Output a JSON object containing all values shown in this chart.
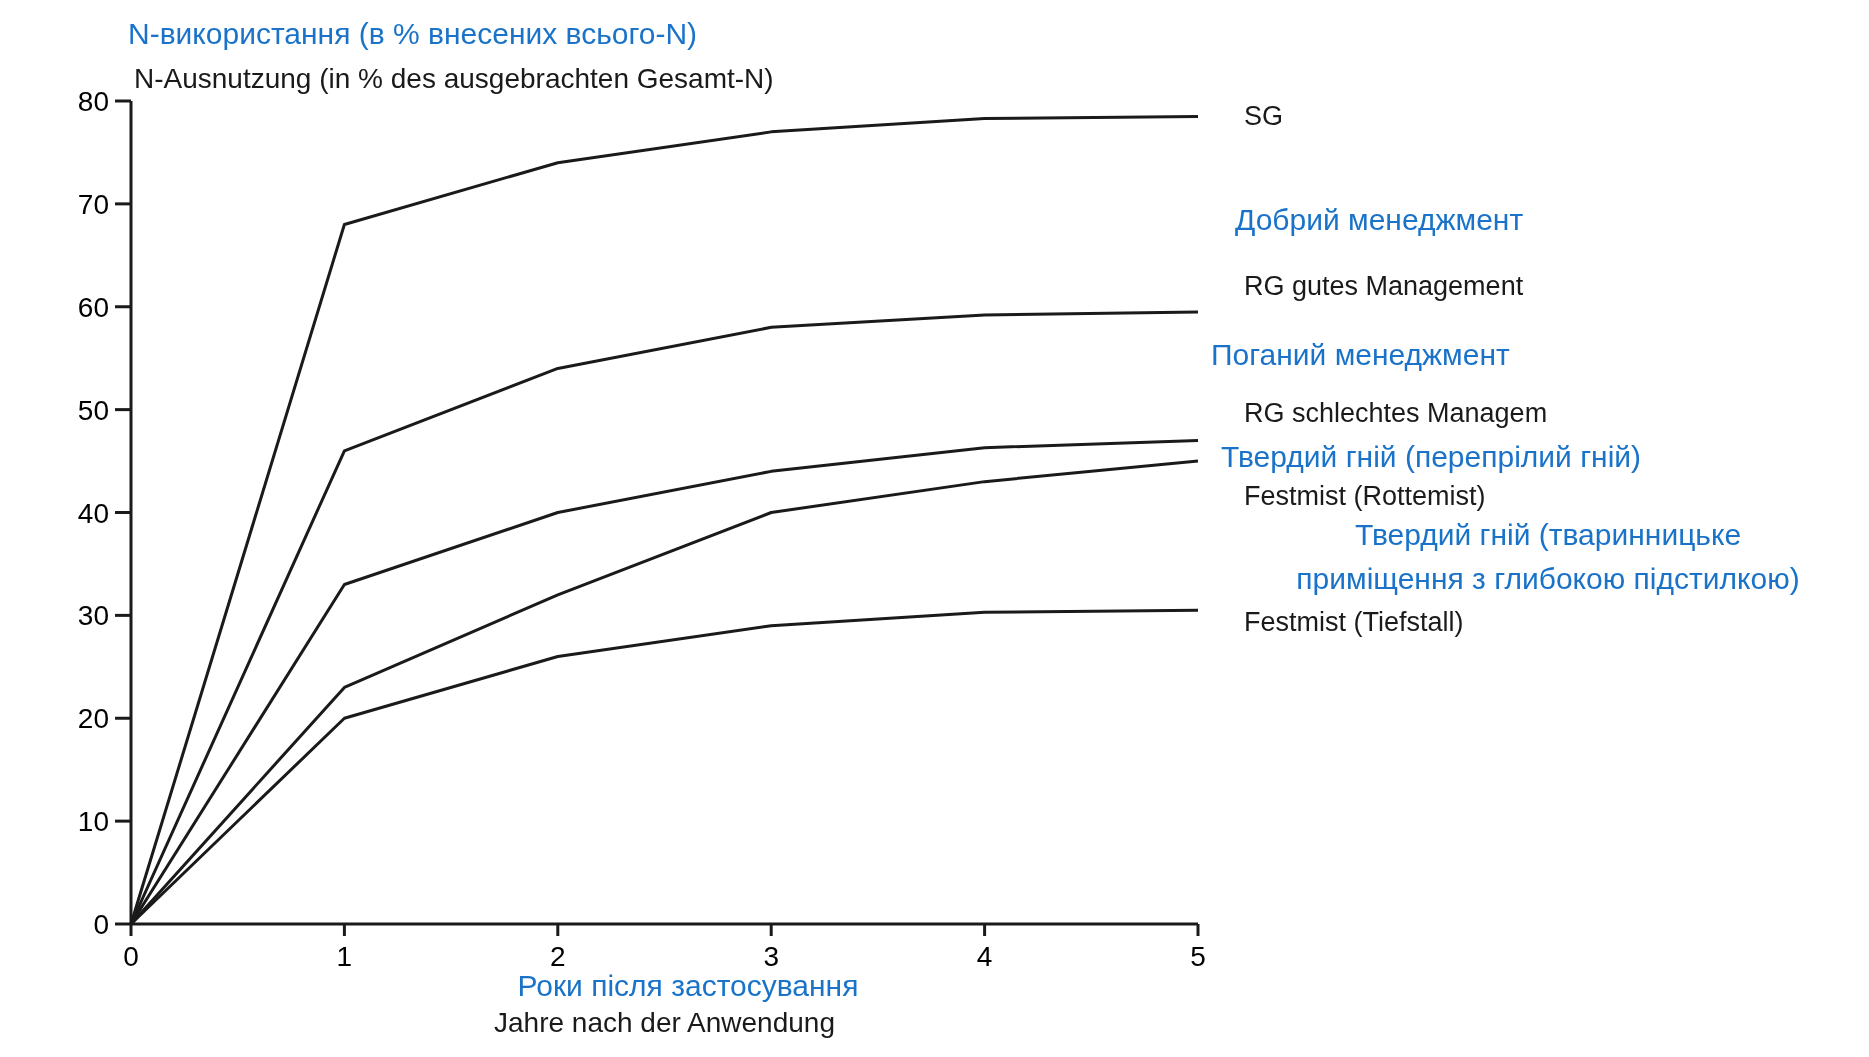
{
  "chart_data": {
    "type": "line",
    "title": "N-використання (в % внесених всього-N)",
    "ylabel": "N-Ausnutzung (in % des ausgebrachten Gesamt-N)",
    "xlabel": "Jahre nach der Anwendung",
    "x": [
      0,
      1,
      2,
      3,
      4,
      5
    ],
    "xlim": [
      0,
      5
    ],
    "xticks": [
      0,
      1,
      2,
      3,
      4,
      5
    ],
    "ylim": [
      0,
      80
    ],
    "yticks": [
      0,
      10,
      20,
      30,
      40,
      50,
      60,
      70,
      80
    ],
    "grid": false,
    "marker": "none",
    "line_style": "solid",
    "series": [
      {
        "name": "SG",
        "color": "#1a1a1a",
        "values": [
          0,
          68,
          74,
          77,
          78.3,
          78.5
        ]
      },
      {
        "name": "RG gutes Management",
        "color": "#1a1a1a",
        "values": [
          0,
          46,
          54,
          58,
          59.2,
          59.5
        ]
      },
      {
        "name": "RG schlechtes Managem",
        "color": "#1a1a1a",
        "values": [
          0,
          33,
          40,
          44,
          46.3,
          47
        ]
      },
      {
        "name": "Festmist (Rottemist)",
        "color": "#1a1a1a",
        "values": [
          0,
          23,
          32,
          40,
          43,
          45
        ]
      },
      {
        "name": "Festmist (Tiefstall)",
        "color": "#1a1a1a",
        "values": [
          0,
          20,
          26,
          29,
          30.3,
          30.5
        ]
      }
    ],
    "annotations": [
      "Роки після застосування",
      "Добрий менеджмент",
      "Поганий менеджмент",
      "Твердий гній (перепрілий гній)",
      "Твердий гній (тваринницьке приміщення з глибокою підстилкою)"
    ]
  }
}
